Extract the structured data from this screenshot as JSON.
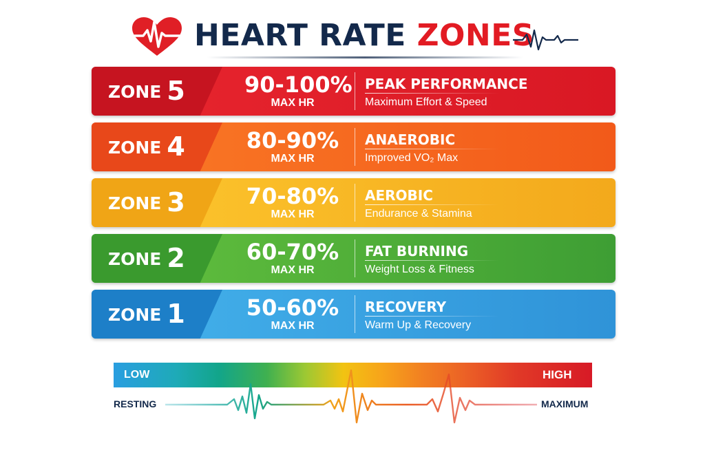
{
  "header": {
    "title_part1": "HEART RATE",
    "title_part2": "ZONES",
    "icons": [
      "heart-pulse-icon",
      "ecg-pulse-icon"
    ],
    "colors": {
      "navy": "#13294b",
      "red": "#e21b23"
    }
  },
  "zones": [
    {
      "zone_word": "ZONE",
      "number": "5",
      "range": "90-100%",
      "basis": "MAX HR",
      "name": "PEAK PERFORMANCE",
      "description": "Maximum Effort & Speed",
      "color": "#d91824"
    },
    {
      "zone_word": "ZONE",
      "number": "4",
      "range": "80-90%",
      "basis": "MAX HR",
      "name": "ANAEROBIC",
      "description": "Improved VO₂ Max",
      "color": "#f25a1a"
    },
    {
      "zone_word": "ZONE",
      "number": "3",
      "range": "70-80%",
      "basis": "MAX HR",
      "name": "AEROBIC",
      "description": "Endurance & Stamina",
      "color": "#f3a91c"
    },
    {
      "zone_word": "ZONE",
      "number": "2",
      "range": "60-70%",
      "basis": "MAX HR",
      "name": "FAT BURNING",
      "description": "Weight Loss & Fitness",
      "color": "#3e9e34"
    },
    {
      "zone_word": "ZONE",
      "number": "1",
      "range": "50-60%",
      "basis": "MAX HR",
      "name": "RECOVERY",
      "description": "Warm Up & Recovery",
      "color": "#2f93d8"
    }
  ],
  "scale": {
    "low_label": "LOW",
    "high_label": "HIGH",
    "resting_label": "RESTING",
    "maximum_label": "MAXIMUM",
    "gradient_colors": [
      "#2a9ee0",
      "#12a58a",
      "#9cc833",
      "#f2c312",
      "#f28221",
      "#d71a26"
    ]
  }
}
